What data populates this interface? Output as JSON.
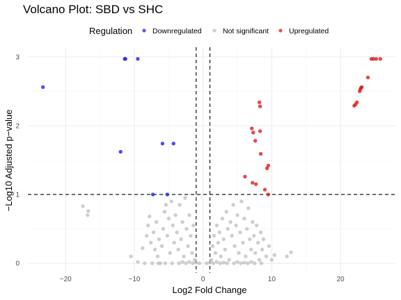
{
  "chart_data": {
    "type": "scatter",
    "title": "Volcano Plot: SBD vs SHC",
    "xlabel": "Log2 Fold Change",
    "ylabel": "−Log10 Adjusted p−value",
    "xlim": [
      -25.5,
      28.0
    ],
    "ylim": [
      -0.14,
      3.14
    ],
    "x_ticks": [
      -20,
      -10,
      0,
      10,
      20
    ],
    "y_ticks": [
      0,
      1,
      2,
      3
    ],
    "x_tick_labels": [
      "−20",
      "−10",
      "0",
      "10",
      "20"
    ],
    "y_tick_labels": [
      "0",
      "1",
      "2",
      "3"
    ],
    "thresholds": {
      "x": [
        -1,
        1
      ],
      "y": [
        1
      ]
    },
    "grid": true,
    "legend": {
      "title": "Regulation",
      "position": "top",
      "entries": [
        "Downregulated",
        "Not significant",
        "Upregulated"
      ]
    },
    "series": [
      {
        "name": "Downregulated",
        "color": "#2222ee",
        "points": [
          [
            -23.3,
            2.56
          ],
          [
            -11.4,
            2.97
          ],
          [
            -11.3,
            2.97
          ],
          [
            -9.5,
            2.97
          ],
          [
            -12.0,
            1.62
          ],
          [
            -5.9,
            1.74
          ],
          [
            -4.3,
            1.74
          ],
          [
            -7.3,
            1.0
          ],
          [
            -5.2,
            1.0
          ]
        ]
      },
      {
        "name": "Not significant",
        "color": "#bdbdbd",
        "points": [
          [
            -17.5,
            0.83
          ],
          [
            -16.8,
            0.7
          ],
          [
            -16.7,
            0.76
          ],
          [
            -10.5,
            0.1
          ],
          [
            -9.5,
            0.02
          ],
          [
            -8.8,
            0.22
          ],
          [
            -8.5,
            0.0
          ],
          [
            -8.2,
            0.4
          ],
          [
            -8.0,
            0.55
          ],
          [
            -7.8,
            0.68
          ],
          [
            -7.6,
            0.3
          ],
          [
            -7.4,
            0.0
          ],
          [
            -7.2,
            0.45
          ],
          [
            -7.0,
            0.2
          ],
          [
            -6.8,
            0.6
          ],
          [
            -6.6,
            0.1
          ],
          [
            -6.4,
            0.35
          ],
          [
            -6.2,
            0.0
          ],
          [
            -6.0,
            0.25
          ],
          [
            -5.8,
            0.5
          ],
          [
            -5.6,
            0.75
          ],
          [
            -5.4,
            0.85
          ],
          [
            -5.2,
            0.4
          ],
          [
            -5.0,
            0.65
          ],
          [
            -4.8,
            0.15
          ],
          [
            -4.6,
            0.9
          ],
          [
            -4.4,
            0.55
          ],
          [
            -4.2,
            0.3
          ],
          [
            -4.0,
            0.7
          ],
          [
            -3.8,
            0.45
          ],
          [
            -3.6,
            0.2
          ],
          [
            -3.4,
            0.85
          ],
          [
            -3.2,
            0.35
          ],
          [
            -3.0,
            0.6
          ],
          [
            -2.8,
            0.1
          ],
          [
            -2.6,
            0.95
          ],
          [
            -2.4,
            0.5
          ],
          [
            -2.2,
            0.25
          ],
          [
            -2.0,
            0.7
          ],
          [
            -1.8,
            0.4
          ],
          [
            -1.6,
            0.15
          ],
          [
            -1.4,
            0.55
          ],
          [
            -1.2,
            0.05
          ],
          [
            -6.5,
            0.0
          ],
          [
            -5.5,
            0.0
          ],
          [
            -4.5,
            0.0
          ],
          [
            -3.5,
            0.0
          ],
          [
            -2.5,
            0.0
          ],
          [
            -1.5,
            0.0
          ],
          [
            -0.5,
            0.0
          ],
          [
            0.5,
            0.0
          ],
          [
            1.5,
            0.0
          ],
          [
            2.5,
            0.0
          ],
          [
            3.5,
            0.0
          ],
          [
            4.5,
            0.0
          ],
          [
            5.5,
            0.0
          ],
          [
            6.5,
            0.0
          ],
          [
            7.5,
            0.0
          ],
          [
            8.5,
            0.0
          ],
          [
            1.2,
            0.05
          ],
          [
            1.4,
            0.25
          ],
          [
            1.6,
            0.4
          ],
          [
            1.8,
            0.15
          ],
          [
            2.0,
            0.55
          ],
          [
            2.2,
            0.3
          ],
          [
            2.4,
            0.45
          ],
          [
            2.6,
            0.1
          ],
          [
            2.8,
            0.65
          ],
          [
            3.0,
            0.35
          ],
          [
            3.2,
            0.2
          ],
          [
            3.4,
            0.75
          ],
          [
            3.6,
            0.5
          ],
          [
            3.8,
            0.05
          ],
          [
            4.0,
            0.6
          ],
          [
            4.2,
            0.4
          ],
          [
            4.4,
            0.85
          ],
          [
            4.6,
            0.25
          ],
          [
            4.8,
            0.55
          ],
          [
            5.0,
            0.7
          ],
          [
            5.2,
            0.15
          ],
          [
            5.4,
            0.45
          ],
          [
            5.6,
            0.9
          ],
          [
            5.8,
            0.3
          ],
          [
            6.0,
            0.65
          ],
          [
            6.2,
            0.1
          ],
          [
            6.4,
            0.5
          ],
          [
            6.6,
            0.8
          ],
          [
            6.8,
            0.35
          ],
          [
            7.0,
            0.2
          ],
          [
            7.2,
            0.6
          ],
          [
            7.4,
            0.4
          ],
          [
            7.6,
            0.15
          ],
          [
            7.8,
            0.55
          ],
          [
            8.0,
            0.3
          ],
          [
            8.2,
            0.05
          ],
          [
            8.4,
            0.45
          ],
          [
            8.6,
            0.2
          ],
          [
            8.8,
            0.35
          ],
          [
            9.2,
            0.1
          ],
          [
            9.6,
            0.25
          ],
          [
            10.0,
            0.05
          ],
          [
            10.4,
            0.12
          ],
          [
            12.2,
            0.1
          ],
          [
            12.8,
            0.16
          ],
          [
            -3.0,
            0.02
          ],
          [
            -2.0,
            0.02
          ],
          [
            -1.0,
            0.01
          ],
          [
            1.0,
            0.01
          ],
          [
            2.0,
            0.02
          ],
          [
            3.0,
            0.01
          ],
          [
            5.0,
            0.02
          ],
          [
            6.0,
            0.01
          ],
          [
            7.0,
            0.02
          ]
        ]
      },
      {
        "name": "Upregulated",
        "color": "#dd1c1c",
        "points": [
          [
            24.5,
            2.97
          ],
          [
            24.8,
            2.97
          ],
          [
            25.2,
            2.97
          ],
          [
            25.8,
            2.97
          ],
          [
            24.0,
            2.7
          ],
          [
            23.1,
            2.56
          ],
          [
            23.0,
            2.55
          ],
          [
            22.9,
            2.53
          ],
          [
            22.8,
            2.5
          ],
          [
            22.4,
            2.34
          ],
          [
            22.2,
            2.31
          ],
          [
            22.0,
            2.29
          ],
          [
            8.2,
            2.34
          ],
          [
            8.3,
            2.28
          ],
          [
            7.1,
            1.96
          ],
          [
            7.3,
            1.9
          ],
          [
            8.3,
            1.92
          ],
          [
            7.6,
            1.78
          ],
          [
            8.4,
            1.59
          ],
          [
            9.5,
            1.42
          ],
          [
            9.3,
            1.38
          ],
          [
            6.1,
            1.26
          ],
          [
            7.2,
            1.17
          ],
          [
            7.7,
            1.15
          ],
          [
            9.0,
            1.07
          ],
          [
            9.5,
            1.0
          ]
        ]
      }
    ]
  }
}
